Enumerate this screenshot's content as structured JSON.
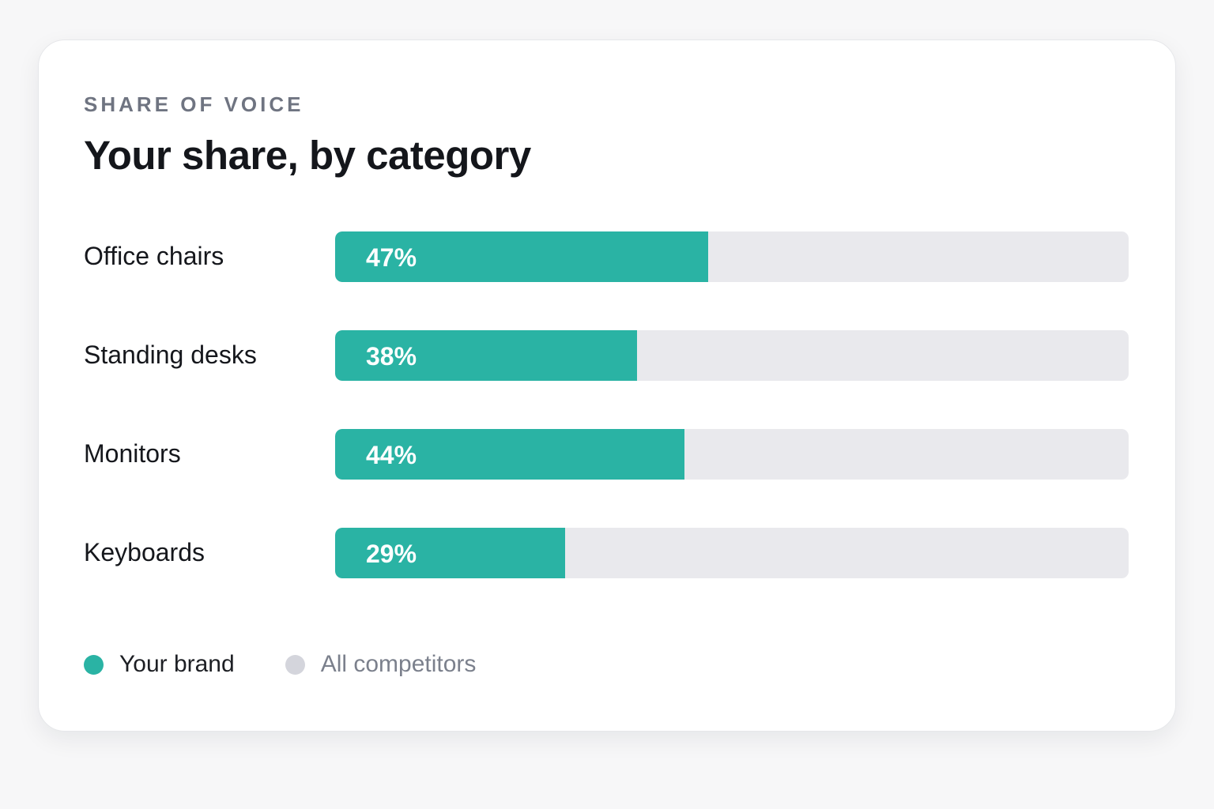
{
  "chart_data": {
    "type": "bar",
    "eyebrow": "SHARE OF VOICE",
    "title": "Your share, by category",
    "categories": [
      "Office chairs",
      "Standing desks",
      "Monitors",
      "Keyboards"
    ],
    "series": [
      {
        "name": "Your brand",
        "values": [
          47,
          38,
          44,
          29
        ],
        "color": "#2ab3a4"
      },
      {
        "name": "All competitors",
        "values": [
          53,
          62,
          56,
          71
        ],
        "color": "#d4d5dc"
      }
    ],
    "value_labels": [
      "47%",
      "38%",
      "44%",
      "29%"
    ],
    "xlim": [
      0,
      100
    ],
    "orientation": "horizontal",
    "stacked": true,
    "grid": false,
    "legend_position": "bottom-left"
  },
  "legend": [
    {
      "label": "Your brand",
      "color": "#2ab3a4",
      "text_color": "#1d1f24"
    },
    {
      "label": "All competitors",
      "color": "#d4d5dc",
      "text_color": "#7b808c"
    }
  ]
}
